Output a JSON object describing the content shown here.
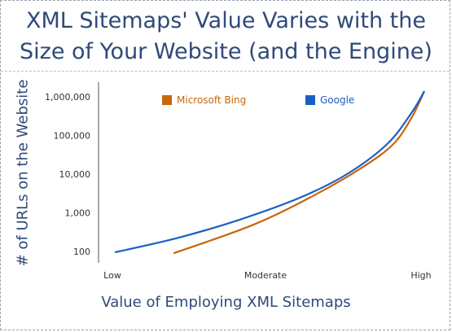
{
  "chart_data": {
    "type": "line",
    "title": "XML Sitemaps' Value Varies with the\nSize of Your Website (and the Engine)",
    "xlabel": "Value of Employing XML Sitemaps",
    "ylabel": "# of URLs on the Website",
    "x_categories": [
      "Low",
      "Moderate",
      "High"
    ],
    "y_scale": "log",
    "y_ticks": [
      100,
      1000,
      10000,
      100000,
      1000000
    ],
    "y_tick_labels": [
      "100",
      "1,000",
      "10,000",
      "100,000",
      "1,000,000"
    ],
    "ylim": [
      100,
      1000000
    ],
    "grid": false,
    "legend_position": "top",
    "series": [
      {
        "name": "Microsoft Bing",
        "color": "#c8660b",
        "points": [
          [
            0.19,
            90
          ],
          [
            0.45,
            500
          ],
          [
            0.65,
            3000
          ],
          [
            0.8,
            15000
          ],
          [
            0.9,
            60000
          ],
          [
            0.96,
            300000
          ],
          [
            1.0,
            1400000
          ]
        ]
      },
      {
        "name": "Google",
        "color": "#1a5fc4",
        "points": [
          [
            0.0,
            95
          ],
          [
            0.2,
            220
          ],
          [
            0.4,
            650
          ],
          [
            0.6,
            2500
          ],
          [
            0.75,
            10000
          ],
          [
            0.88,
            60000
          ],
          [
            0.96,
            400000
          ],
          [
            1.0,
            1400000
          ]
        ]
      }
    ]
  }
}
